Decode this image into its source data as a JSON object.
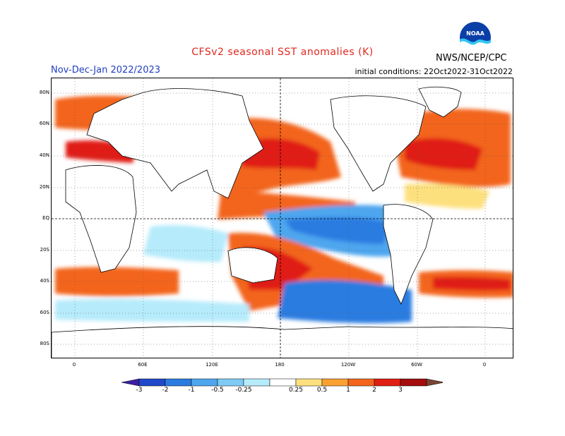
{
  "title": "CFSv2 seasonal SST anomalies (K)",
  "season": "Nov-Dec-Jan 2022/2023",
  "initial_conditions": "initial conditions: 22Oct2022-31Oct2022",
  "org": "NWS/NCEP/CPC",
  "logo": {
    "icon": "noaa-logo-icon",
    "text": "NOAA"
  },
  "lat_labels": [
    "80N",
    "60N",
    "40N",
    "20N",
    "EQ",
    "20S",
    "40S",
    "60S",
    "80S"
  ],
  "lon_labels": [
    "0",
    "60E",
    "120E",
    "180",
    "120W",
    "60W",
    "0"
  ],
  "colorbar": {
    "labels": [
      "-3",
      "-2",
      "-1",
      "-0.5",
      "-0.25",
      "0.25",
      "0.5",
      "1",
      "2",
      "3"
    ],
    "colors": [
      "#3b1fa5",
      "#1f49c8",
      "#2a7be0",
      "#4da6ee",
      "#7ecbf5",
      "#b6ebfb",
      "#ffffff",
      "#fde07e",
      "#fba132",
      "#f3651c",
      "#e01e13",
      "#a30d0d",
      "#7a4433"
    ]
  },
  "colors": {
    "title": "#e0281e",
    "season": "#1f3fbf"
  }
}
